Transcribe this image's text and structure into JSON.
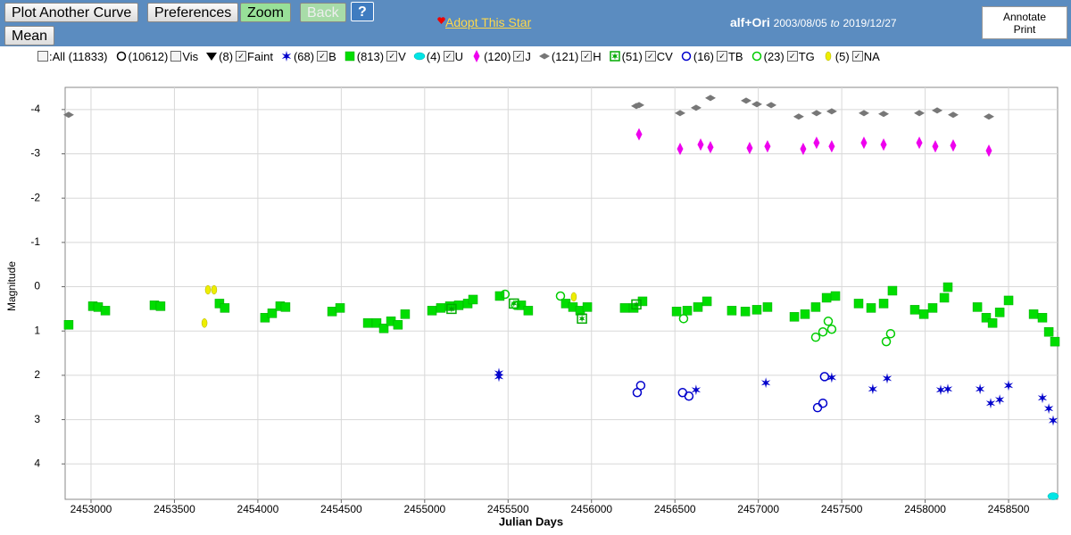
{
  "toolbar": {
    "buttons": [
      "Plot Another Curve",
      "Preferences",
      "Zoom",
      "Back",
      "?",
      "Mean"
    ],
    "adopt": "Adopt This Star",
    "star": "alf+Ori",
    "date_from": "2003/08/05",
    "to": "to",
    "date_to": "2019/12/27",
    "annotate": "Annotate Print"
  },
  "legend": {
    "all": ":All (11833)"
  },
  "chart_data": {
    "type": "scatter",
    "xlabel": "Julian Days",
    "ylabel": "Magnitude",
    "xlim": [
      2452845,
      2458794
    ],
    "xticks": [
      2453000,
      2453500,
      2454000,
      2454500,
      2455000,
      2455500,
      2456000,
      2456500,
      2457000,
      2457500,
      2458000,
      2458500
    ],
    "ylim": [
      -4.5,
      4.8
    ],
    "y_inverted": true,
    "yticks": [
      -4,
      -3,
      -2,
      -1,
      0,
      1,
      2,
      3,
      4
    ],
    "grid": true,
    "series": [
      {
        "name": "Vis",
        "count": "(10612)",
        "checked": false,
        "marker": "circle-open",
        "color": "#000000",
        "x": [],
        "values": []
      },
      {
        "name": "Faint",
        "count": "(8)",
        "checked": true,
        "marker": "triangle-down",
        "color": "#000000",
        "x": [],
        "values": []
      },
      {
        "name": "B",
        "count": "(68)",
        "checked": true,
        "marker": "star",
        "color": "#0000cc",
        "x": [
          2455445,
          2455445,
          2456627,
          2457045,
          2457440,
          2457686,
          2457772,
          2458093,
          2458136,
          2458329,
          2458393,
          2458447,
          2458500,
          2458703,
          2458741,
          2458767
        ],
        "values": [
          1.95,
          2.03,
          2.33,
          2.17,
          2.05,
          2.31,
          2.07,
          2.33,
          2.31,
          2.31,
          2.63,
          2.55,
          2.23,
          2.51,
          2.75,
          3.02
        ]
      },
      {
        "name": "V",
        "count": "(813)",
        "checked": true,
        "marker": "square",
        "color": "#00dd00",
        "x": [
          2452866,
          2453011,
          2453043,
          2453086,
          2453380,
          2453417,
          2453770,
          2453802,
          2454043,
          2454086,
          2454134,
          2454166,
          2454445,
          2454493,
          2454659,
          2454712,
          2454755,
          2454798,
          2454840,
          2454883,
          2455044,
          2455097,
          2455151,
          2455204,
          2455258,
          2455290,
          2455450,
          2455579,
          2455621,
          2455846,
          2455889,
          2455932,
          2455975,
          2456199,
          2456253,
          2456306,
          2456510,
          2456574,
          2456638,
          2456692,
          2456841,
          2456922,
          2456991,
          2457055,
          2457216,
          2457280,
          2457344,
          2457409,
          2457462,
          2457601,
          2457676,
          2457751,
          2457804,
          2457938,
          2457992,
          2458045,
          2458115,
          2458136,
          2458313,
          2458366,
          2458404,
          2458447,
          2458500,
          2458650,
          2458703,
          2458741,
          2458778
        ],
        "values": [
          0.86,
          0.44,
          0.46,
          0.54,
          0.42,
          0.44,
          0.38,
          0.48,
          0.7,
          0.6,
          0.44,
          0.46,
          0.56,
          0.48,
          0.82,
          0.82,
          0.94,
          0.78,
          0.86,
          0.62,
          0.54,
          0.48,
          0.44,
          0.42,
          0.38,
          0.29,
          0.21,
          0.42,
          0.54,
          0.38,
          0.46,
          0.54,
          0.46,
          0.48,
          0.48,
          0.33,
          0.56,
          0.54,
          0.46,
          0.33,
          0.54,
          0.56,
          0.52,
          0.46,
          0.68,
          0.62,
          0.46,
          0.25,
          0.21,
          0.38,
          0.48,
          0.38,
          0.09,
          0.52,
          0.62,
          0.48,
          0.25,
          0.01,
          0.46,
          0.7,
          0.82,
          0.58,
          0.31,
          0.62,
          0.7,
          1.02,
          1.24
        ]
      },
      {
        "name": "U",
        "count": "(4)",
        "checked": true,
        "marker": "ellipse",
        "color": "#00e5e5",
        "x": [
          2458767
        ],
        "values": [
          4.73
        ]
      },
      {
        "name": "J",
        "count": "(120)",
        "checked": true,
        "marker": "diamond-tall",
        "color": "#ee00ee",
        "x": [
          2456285,
          2456531,
          2456654,
          2456713,
          2456948,
          2457055,
          2457269,
          2457349,
          2457440,
          2457633,
          2457751,
          2457965,
          2458061,
          2458168,
          2458382
        ],
        "values": [
          -3.44,
          -3.11,
          -3.21,
          -3.15,
          -3.13,
          -3.17,
          -3.11,
          -3.25,
          -3.17,
          -3.25,
          -3.21,
          -3.25,
          -3.17,
          -3.19,
          -3.07
        ]
      },
      {
        "name": "H",
        "count": "(121)",
        "checked": true,
        "marker": "diamond-wide",
        "color": "#777777",
        "x": [
          2452866,
          2456269,
          2456285,
          2456531,
          2456627,
          2456713,
          2456927,
          2456991,
          2457077,
          2457242,
          2457349,
          2457440,
          2457633,
          2457751,
          2457965,
          2458072,
          2458168,
          2458382
        ],
        "values": [
          -3.88,
          -4.08,
          -4.1,
          -3.92,
          -4.04,
          -4.26,
          -4.2,
          -4.12,
          -4.1,
          -3.84,
          -3.92,
          -3.96,
          -3.92,
          -3.9,
          -3.92,
          -3.98,
          -3.88,
          -3.84
        ]
      },
      {
        "name": "CV",
        "count": "(51)",
        "checked": true,
        "marker": "cv",
        "color": "#00aa00",
        "x": [
          2455161,
          2455535,
          2455943,
          2456269
        ],
        "values": [
          0.5,
          0.38,
          0.72,
          0.4
        ]
      },
      {
        "name": "TB",
        "count": "(16)",
        "checked": true,
        "marker": "circle-open",
        "color": "#0000cc",
        "x": [
          2456274,
          2456295,
          2456546,
          2456584,
          2457355,
          2457387,
          2457397
        ],
        "values": [
          2.39,
          2.23,
          2.39,
          2.47,
          2.73,
          2.63,
          2.03
        ]
      },
      {
        "name": "TG",
        "count": "(23)",
        "checked": true,
        "marker": "circle-open",
        "color": "#00cc00",
        "x": [
          2455482,
          2455546,
          2455814,
          2456552,
          2457344,
          2457387,
          2457419,
          2457440,
          2457767,
          2457793
        ],
        "values": [
          0.17,
          0.42,
          0.21,
          0.72,
          1.14,
          1.02,
          0.78,
          0.96,
          1.24,
          1.06
        ]
      },
      {
        "name": "NA",
        "count": "(5)",
        "checked": true,
        "marker": "ellipse-tall",
        "color": "#eeee00",
        "x": [
          2453701,
          2453738,
          2453680,
          2455894
        ],
        "values": [
          0.07,
          0.07,
          0.82,
          0.23
        ]
      }
    ]
  }
}
